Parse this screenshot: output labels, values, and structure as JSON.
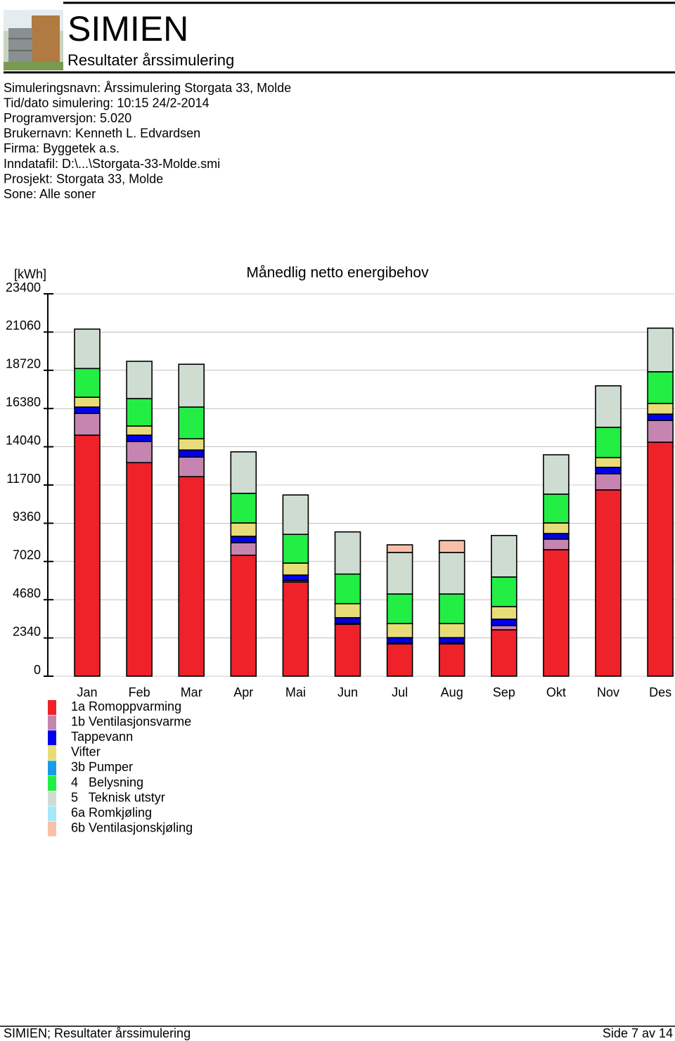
{
  "header": {
    "title": "SIMIEN",
    "subtitle": "Resultater årssimulering"
  },
  "info": [
    "Simuleringsnavn: Årssimulering Storgata 33, Molde",
    "Tid/dato simulering: 10:15 24/2-2014",
    "Programversjon: 5.020",
    "Brukernavn: Kenneth L. Edvardsen",
    "Firma: Byggetek a.s.",
    "Inndatafil: D:\\...\\Storgata-33-Molde.smi",
    "Prosjekt: Storgata 33, Molde",
    "Sone: Alle soner"
  ],
  "chart_data": {
    "type": "stacked-bar",
    "title": "Månedlig netto energibehov",
    "y_label": "[kWh]",
    "categories": [
      "Jan",
      "Feb",
      "Mar",
      "Apr",
      "Mai",
      "Jun",
      "Jul",
      "Aug",
      "Sep",
      "Okt",
      "Nov",
      "Des"
    ],
    "ylim": [
      0,
      23400
    ],
    "yticks": [
      0,
      2340,
      4680,
      7020,
      9360,
      11700,
      14040,
      16380,
      18720,
      21060,
      23400
    ],
    "grid": true,
    "series": [
      {
        "name": "1a Romoppvarming",
        "color": "#ee2228",
        "values": [
          14750,
          13070,
          12210,
          7400,
          5760,
          3180,
          1980,
          1980,
          2840,
          7740,
          11400,
          14320
        ]
      },
      {
        "name": "1b Ventilasjonsvarme",
        "color": "#c585b0",
        "values": [
          1330,
          1290,
          1200,
          770,
          90,
          60,
          40,
          40,
          260,
          650,
          990,
          1330
        ]
      },
      {
        "name": "Tappevann",
        "color": "#0000ee",
        "values": [
          390,
          390,
          430,
          390,
          340,
          340,
          340,
          340,
          390,
          340,
          390,
          390
        ]
      },
      {
        "name": "Vifter",
        "color": "#e8dc78",
        "values": [
          600,
          560,
          690,
          820,
          730,
          860,
          860,
          860,
          770,
          650,
          600,
          650
        ]
      },
      {
        "name": "3b Pumper",
        "color": "#1a9be8",
        "values": [
          0,
          0,
          0,
          0,
          0,
          0,
          0,
          0,
          0,
          0,
          0,
          0
        ]
      },
      {
        "name": "4   Belysning",
        "color": "#22ee44",
        "values": [
          1760,
          1680,
          1940,
          1810,
          1760,
          1810,
          1810,
          1810,
          1810,
          1760,
          1850,
          1940
        ]
      },
      {
        "name": "5   Teknisk utstyr",
        "color": "#cfdcd2",
        "values": [
          2410,
          2280,
          2620,
          2540,
          2410,
          2580,
          2540,
          2540,
          2540,
          2410,
          2540,
          2670
        ]
      },
      {
        "name": "6a Romkjøling",
        "color": "#a6e8f8",
        "values": [
          0,
          0,
          0,
          0,
          0,
          0,
          0,
          0,
          0,
          0,
          0,
          0
        ]
      },
      {
        "name": "6b Ventilasjonskjøling",
        "color": "#f8c0a8",
        "values": [
          0,
          0,
          0,
          0,
          0,
          0,
          470,
          730,
          0,
          0,
          0,
          0
        ]
      }
    ]
  },
  "footer": {
    "left": "SIMIEN; Resultater årssimulering",
    "right": "Side 7 av 14"
  }
}
